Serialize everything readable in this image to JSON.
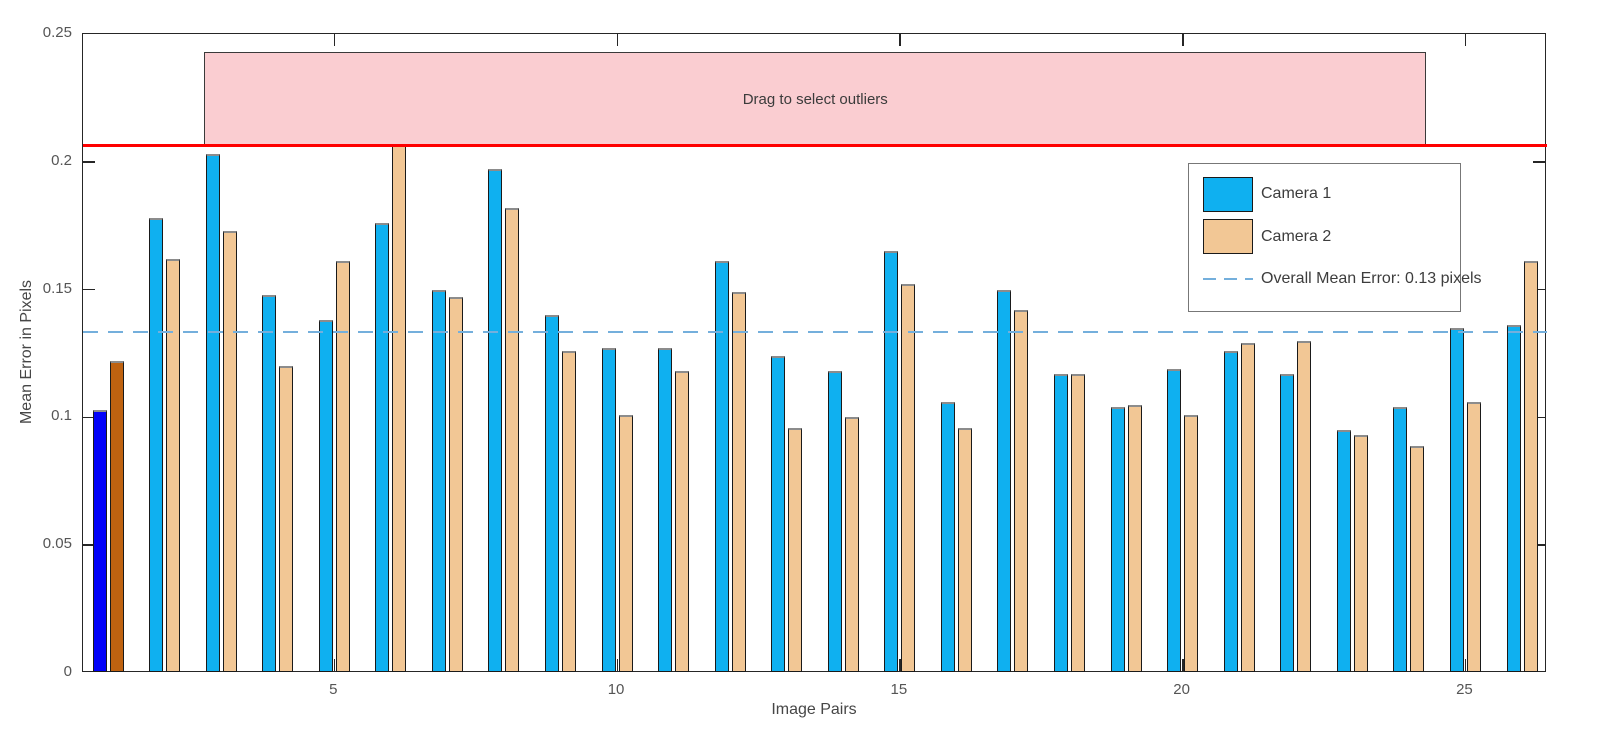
{
  "chart_data": {
    "type": "bar",
    "title": "",
    "xlabel": "Image Pairs",
    "ylabel": "Mean Error in Pixels",
    "x": [
      1,
      2,
      3,
      4,
      5,
      6,
      7,
      8,
      9,
      10,
      11,
      12,
      13,
      14,
      15,
      16,
      17,
      18,
      19,
      20,
      21,
      22,
      23,
      24,
      25,
      26
    ],
    "series": [
      {
        "name": "Camera 1",
        "values": [
          0.103,
          0.178,
          0.203,
          0.148,
          0.138,
          0.176,
          0.15,
          0.197,
          0.14,
          0.127,
          0.127,
          0.161,
          0.124,
          0.118,
          0.165,
          0.106,
          0.15,
          0.117,
          0.104,
          0.119,
          0.126,
          0.117,
          0.095,
          0.104,
          0.135,
          0.136
        ]
      },
      {
        "name": "Camera 2",
        "values": [
          0.122,
          0.162,
          0.173,
          0.12,
          0.161,
          0.207,
          0.147,
          0.182,
          0.126,
          0.101,
          0.118,
          0.149,
          0.096,
          0.1,
          0.152,
          0.096,
          0.142,
          0.117,
          0.105,
          0.101,
          0.129,
          0.13,
          0.093,
          0.089,
          0.106,
          0.161
        ]
      }
    ],
    "selected_pair": 1,
    "ylim": [
      0,
      0.25
    ],
    "yticks": [
      0,
      0.05,
      0.1,
      0.15,
      0.2,
      0.25
    ],
    "yticklabels": [
      "0",
      "0.05",
      "0.1",
      "0.15",
      "0.2",
      "0.25"
    ],
    "xticks": [
      5,
      10,
      15,
      20,
      25
    ],
    "xticklabels": [
      "5",
      "10",
      "15",
      "20",
      "25"
    ],
    "grid": "off",
    "legend_position": "northeast",
    "mean_line": {
      "value": 0.1335,
      "label": "Overall Mean Error: 0.13 pixels"
    },
    "threshold_line": {
      "value": 0.2065
    },
    "selection_box": {
      "label": "Drag to select outliers",
      "x0": 2.7,
      "x1": 24.31,
      "y_top": 0.243
    },
    "colors": {
      "camera1": "#0FB0F0",
      "camera2": "#F2C795",
      "selected_camera1": "#0202F8",
      "selected_camera2": "#BF6210",
      "threshold_line": "#FE0000",
      "mean_line": "#74AFDC",
      "selection_fill": "#FACDD1",
      "bar_edge": "#1a1a1a",
      "bar_cap": "#8c8c8c"
    }
  },
  "legend": {
    "items": [
      {
        "label": "Camera 1"
      },
      {
        "label": "Camera 2"
      },
      {
        "label": "Overall Mean Error: 0.13 pixels"
      }
    ]
  }
}
